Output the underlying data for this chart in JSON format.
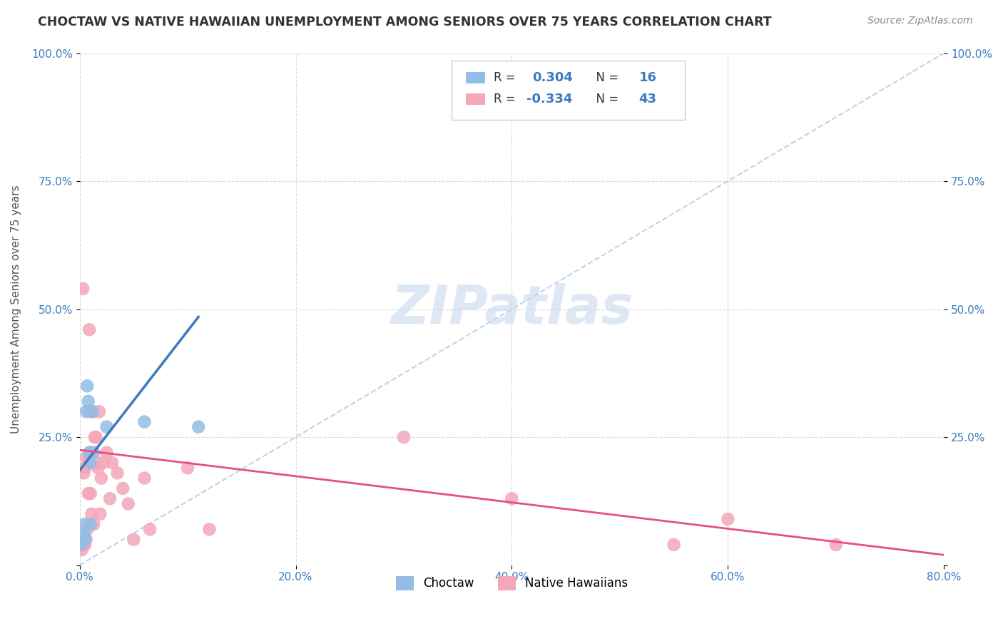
{
  "title": "CHOCTAW VS NATIVE HAWAIIAN UNEMPLOYMENT AMONG SENIORS OVER 75 YEARS CORRELATION CHART",
  "source": "Source: ZipAtlas.com",
  "ylabel": "Unemployment Among Seniors over 75 years",
  "xlim": [
    0.0,
    0.8
  ],
  "ylim": [
    0.0,
    1.0
  ],
  "xticks": [
    0.0,
    0.2,
    0.4,
    0.6,
    0.8
  ],
  "yticks": [
    0.0,
    0.25,
    0.5,
    0.75,
    1.0
  ],
  "xtick_labels": [
    "0.0%",
    "20.0%",
    "40.0%",
    "60.0%",
    "80.0%"
  ],
  "ytick_labels": [
    "",
    "25.0%",
    "50.0%",
    "75.0%",
    "100.0%"
  ],
  "choctaw_R": 0.304,
  "choctaw_N": 16,
  "native_hawaiian_R": -0.334,
  "native_hawaiian_N": 43,
  "choctaw_color": "#92bde6",
  "native_hawaiian_color": "#f4a7b9",
  "choctaw_line_color": "#3a7abf",
  "native_hawaiian_line_color": "#e8507a",
  "trend_line_color": "#b0c8e8",
  "watermark_color": "#c8d8ee",
  "background_color": "#ffffff",
  "choctaw_x": [
    0.001,
    0.003,
    0.004,
    0.005,
    0.005,
    0.006,
    0.007,
    0.008,
    0.009,
    0.01,
    0.01,
    0.012,
    0.013,
    0.025,
    0.06,
    0.11
  ],
  "choctaw_y": [
    0.04,
    0.05,
    0.06,
    0.05,
    0.08,
    0.3,
    0.35,
    0.32,
    0.22,
    0.2,
    0.08,
    0.3,
    0.22,
    0.27,
    0.28,
    0.27
  ],
  "native_hawaiian_x": [
    0.001,
    0.002,
    0.003,
    0.004,
    0.004,
    0.005,
    0.005,
    0.006,
    0.006,
    0.007,
    0.008,
    0.008,
    0.009,
    0.009,
    0.01,
    0.01,
    0.011,
    0.012,
    0.013,
    0.014,
    0.015,
    0.016,
    0.017,
    0.018,
    0.019,
    0.02,
    0.022,
    0.025,
    0.028,
    0.03,
    0.035,
    0.04,
    0.045,
    0.05,
    0.06,
    0.065,
    0.1,
    0.12,
    0.3,
    0.4,
    0.55,
    0.6,
    0.7
  ],
  "native_hawaiian_y": [
    0.04,
    0.03,
    0.54,
    0.04,
    0.18,
    0.04,
    0.19,
    0.21,
    0.05,
    0.07,
    0.14,
    0.2,
    0.3,
    0.46,
    0.22,
    0.14,
    0.1,
    0.3,
    0.08,
    0.25,
    0.25,
    0.2,
    0.19,
    0.3,
    0.1,
    0.17,
    0.2,
    0.22,
    0.13,
    0.2,
    0.18,
    0.15,
    0.12,
    0.05,
    0.17,
    0.07,
    0.19,
    0.07,
    0.25,
    0.13,
    0.04,
    0.09,
    0.04
  ],
  "choctaw_line_x0": 0.0,
  "choctaw_line_y0": 0.185,
  "choctaw_line_x1": 0.11,
  "choctaw_line_y1": 0.485,
  "native_line_x0": 0.0,
  "native_line_y0": 0.225,
  "native_line_x1": 0.8,
  "native_line_y1": 0.02
}
